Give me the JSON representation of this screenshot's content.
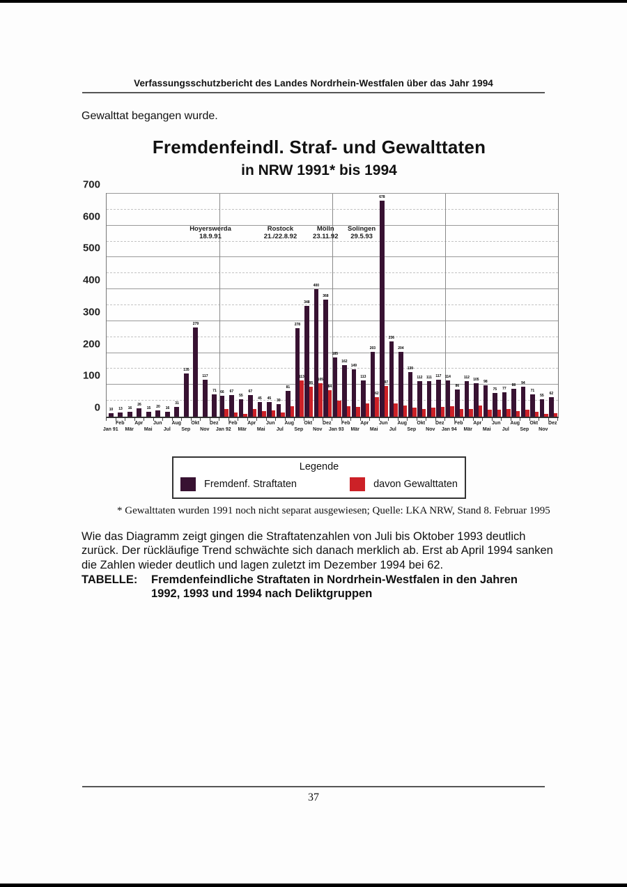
{
  "page": {
    "header": "Verfassungsschutzbericht des Landes Nordrhein-Westfalen über das Jahr 1994",
    "intro_text": "Gewalttat begangen wurde.",
    "footnote": "* Gewalttaten wurden 1991 noch nicht separat ausgewiesen; Quelle: LKA NRW, Stand 8. Februar 1995",
    "paragraph": "Wie das Diagramm zeigt gingen die Straftatenzahlen von Juli bis Oktober 1993 deutlich zurück. Der rückläufige Trend schwächte sich danach merklich ab. Erst ab April 1994 sanken die Zahlen wieder deutlich und lagen zuletzt im Dezember 1994 bei 62.",
    "table_label": "TABELLE:",
    "table_caption_line1": "Fremdenfeindliche Straftaten in Nordrhein-Westfalen in den Jahren",
    "table_caption_line2": "1992, 1993 und 1994 nach Deliktgruppen",
    "page_number": "37"
  },
  "chart_data": {
    "type": "bar",
    "title": "Fremdenfeindl. Straf- und Gewalttaten",
    "subtitle": "in NRW 1991* bis 1994",
    "ylim": [
      0,
      700
    ],
    "y_ticks": [
      0,
      100,
      200,
      300,
      400,
      500,
      600,
      700
    ],
    "grid": "horizontal; solid major lines every 100, dashed minor lines every 50",
    "legend_title": "Legende",
    "legend_position": "below chart in boxed legend",
    "year_separators_after_index": [
      12,
      24,
      36
    ],
    "categories": [
      "Jan 91",
      "Feb",
      "Mär",
      "Apr",
      "Mai",
      "Jun",
      "Jul",
      "Aug",
      "Sep",
      "Okt",
      "Nov",
      "Dez",
      "Jan 92",
      "Feb",
      "Mär",
      "Apr",
      "Mai",
      "Jun",
      "Jul",
      "Aug",
      "Sep",
      "Okt",
      "Nov",
      "Dez",
      "Jan 93",
      "Feb",
      "Mär",
      "Apr",
      "Mai",
      "Jun",
      "Jul",
      "Aug",
      "Sep",
      "Okt",
      "Nov",
      "Dez",
      "Jan 94",
      "Feb",
      "Mär",
      "Apr",
      "Mai",
      "Jun",
      "Jul",
      "Aug",
      "Sep",
      "Okt",
      "Nov",
      "Dez"
    ],
    "series": [
      {
        "name": "Fremdenf. Straftaten",
        "color": "#381232",
        "values": [
          10,
          13,
          16,
          26,
          15,
          20,
          16,
          31,
          135,
          279,
          117,
          71,
          66,
          67,
          55,
          67,
          45,
          45,
          39,
          81,
          278,
          348,
          400,
          368,
          185,
          162,
          149,
          113,
          203,
          678,
          236,
          204,
          139,
          112,
          111,
          117,
          114,
          86,
          112,
          105,
          98,
          75,
          77,
          88,
          94,
          71,
          55,
          62
        ]
      },
      {
        "name": "davon Gewalttaten",
        "color": "#cc2127",
        "values": [
          null,
          null,
          null,
          null,
          null,
          null,
          null,
          null,
          null,
          null,
          null,
          null,
          24,
          14,
          9,
          24,
          18,
          19,
          14,
          32,
          113,
          95,
          105,
          84,
          50,
          33,
          30,
          42,
          62,
          97,
          42,
          34,
          28,
          25,
          28,
          30,
          32,
          25,
          25,
          35,
          22,
          22,
          24,
          18,
          22,
          15,
          8,
          12
        ]
      }
    ],
    "annotations": [
      {
        "label": "Hoyerswerda",
        "date": "18.9.91",
        "x_pct": 23
      },
      {
        "label": "Rostock",
        "date": "21./22.8.92",
        "x_pct": 38.5
      },
      {
        "label": "Mölln",
        "date": "23.11.92",
        "x_pct": 48.5
      },
      {
        "label": "Solingen",
        "date": "29.5.93",
        "x_pct": 56.5
      }
    ]
  }
}
